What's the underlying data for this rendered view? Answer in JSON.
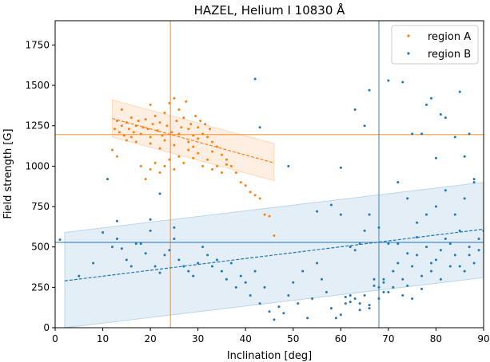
{
  "chart_data": {
    "type": "scatter",
    "title": "HAZEL, Helium I 10830 Å",
    "xlabel": "Inclination [deg]",
    "ylabel": "Field strength [G]",
    "xlim": [
      0,
      90
    ],
    "ylim": [
      0,
      1900
    ],
    "xticks": [
      0,
      10,
      20,
      30,
      40,
      50,
      60,
      70,
      80,
      90
    ],
    "yticks": [
      0,
      250,
      500,
      750,
      1000,
      1250,
      1500,
      1750
    ],
    "grid": false,
    "legend": {
      "placement": "top-right"
    },
    "colors": {
      "region_a": "#ff7f0e",
      "region_b": "#1f77b4"
    },
    "series": [
      {
        "name": "region A",
        "color": "#ff7f0e",
        "points": [
          [
            12.5,
            1230
          ],
          [
            13,
            1280
          ],
          [
            13.5,
            1210
          ],
          [
            14,
            1250
          ],
          [
            14.5,
            1190
          ],
          [
            15,
            1270
          ],
          [
            15.5,
            1230
          ],
          [
            16,
            1300
          ],
          [
            16.5,
            1210
          ],
          [
            17,
            1250
          ],
          [
            17.5,
            1280
          ],
          [
            18,
            1200
          ],
          [
            18.5,
            1240
          ],
          [
            19,
            1290
          ],
          [
            19.5,
            1230
          ],
          [
            20,
            1180
          ],
          [
            20.5,
            1260
          ],
          [
            21,
            1310
          ],
          [
            21.5,
            1220
          ],
          [
            22,
            1270
          ],
          [
            22.5,
            1190
          ],
          [
            23,
            1330
          ],
          [
            23.5,
            1250
          ],
          [
            24,
            1390
          ],
          [
            24.5,
            1210
          ],
          [
            25,
            1420
          ],
          [
            25.5,
            1280
          ],
          [
            26,
            1350
          ],
          [
            26.5,
            1240
          ],
          [
            27,
            1300
          ],
          [
            27.5,
            1400
          ],
          [
            28,
            1230
          ],
          [
            28.5,
            1260
          ],
          [
            29,
            1190
          ],
          [
            29.5,
            1310
          ],
          [
            30,
            1240
          ],
          [
            30.5,
            1280
          ],
          [
            31,
            1200
          ],
          [
            31.5,
            1260
          ],
          [
            32,
            1180
          ],
          [
            32.5,
            1230
          ],
          [
            33,
            1150
          ],
          [
            34,
            1120
          ],
          [
            35,
            1070
          ],
          [
            36,
            1040
          ],
          [
            37,
            1000
          ],
          [
            38,
            960
          ],
          [
            39,
            900
          ],
          [
            40,
            880
          ],
          [
            41,
            840
          ],
          [
            42,
            820
          ],
          [
            43,
            800
          ],
          [
            44,
            700
          ],
          [
            45,
            690
          ],
          [
            46,
            570
          ],
          [
            12,
            1100
          ],
          [
            13,
            1060
          ],
          [
            18,
            1000
          ],
          [
            19,
            920
          ],
          [
            20,
            980
          ],
          [
            21,
            1020
          ],
          [
            22,
            960
          ],
          [
            23,
            1000
          ],
          [
            24,
            1040
          ],
          [
            25,
            980
          ],
          [
            26,
            1060
          ],
          [
            27,
            1020
          ],
          [
            28,
            1100
          ],
          [
            29,
            1050
          ],
          [
            30,
            1080
          ],
          [
            31,
            1000
          ],
          [
            32,
            1040
          ],
          [
            33,
            980
          ],
          [
            34,
            1000
          ],
          [
            35,
            960
          ],
          [
            15,
            1160
          ],
          [
            16,
            1180
          ],
          [
            17,
            1150
          ],
          [
            20,
            1140
          ],
          [
            22,
            1110
          ],
          [
            25,
            1130
          ],
          [
            28,
            1150
          ],
          [
            30,
            1170
          ],
          [
            33,
            1090
          ],
          [
            36,
            1010
          ],
          [
            14,
            1350
          ],
          [
            20,
            1380
          ],
          [
            26,
            1200
          ],
          [
            23,
            1160
          ],
          [
            29,
            1120
          ]
        ]
      },
      {
        "name": "region B",
        "color": "#1f77b4",
        "points": [
          [
            1,
            545
          ],
          [
            5,
            320
          ],
          [
            8,
            400
          ],
          [
            10,
            590
          ],
          [
            12,
            500
          ],
          [
            13,
            550
          ],
          [
            14,
            490
          ],
          [
            15,
            420
          ],
          [
            16,
            380
          ],
          [
            18,
            520
          ],
          [
            19,
            460
          ],
          [
            20,
            600
          ],
          [
            21,
            380
          ],
          [
            22,
            340
          ],
          [
            23,
            450
          ],
          [
            24,
            480
          ],
          [
            25,
            550
          ],
          [
            26,
            420
          ],
          [
            27,
            380
          ],
          [
            28,
            350
          ],
          [
            29,
            320
          ],
          [
            30,
            400
          ],
          [
            31,
            500
          ],
          [
            32,
            450
          ],
          [
            33,
            380
          ],
          [
            34,
            420
          ],
          [
            35,
            350
          ],
          [
            36,
            300
          ],
          [
            37,
            400
          ],
          [
            38,
            250
          ],
          [
            39,
            320
          ],
          [
            40,
            280
          ],
          [
            41,
            200
          ],
          [
            42,
            350
          ],
          [
            43,
            150
          ],
          [
            44,
            250
          ],
          [
            45,
            100
          ],
          [
            46,
            50
          ],
          [
            47,
            130
          ],
          [
            48,
            90
          ],
          [
            49,
            200
          ],
          [
            50,
            280
          ],
          [
            51,
            150
          ],
          [
            52,
            350
          ],
          [
            53,
            60
          ],
          [
            54,
            180
          ],
          [
            55,
            400
          ],
          [
            56,
            300
          ],
          [
            57,
            220
          ],
          [
            58,
            120
          ],
          [
            59,
            60
          ],
          [
            60,
            80
          ],
          [
            61,
            150
          ],
          [
            62,
            200
          ],
          [
            63,
            180
          ],
          [
            64,
            150
          ],
          [
            65,
            200
          ],
          [
            66,
            120
          ],
          [
            67,
            300
          ],
          [
            68,
            250
          ],
          [
            69,
            280
          ],
          [
            70,
            220
          ],
          [
            71,
            350
          ],
          [
            72,
            400
          ],
          [
            73,
            300
          ],
          [
            74,
            260
          ],
          [
            75,
            380
          ],
          [
            76,
            450
          ],
          [
            77,
            320
          ],
          [
            78,
            500
          ],
          [
            79,
            350
          ],
          [
            80,
            420
          ],
          [
            81,
            300
          ],
          [
            82,
            550
          ],
          [
            83,
            380
          ],
          [
            84,
            450
          ],
          [
            85,
            600
          ],
          [
            86,
            350
          ],
          [
            87,
            500
          ],
          [
            88,
            400
          ],
          [
            89,
            550
          ],
          [
            66,
            700
          ],
          [
            68,
            620
          ],
          [
            70,
            520
          ],
          [
            72,
            900
          ],
          [
            74,
            800
          ],
          [
            76,
            650
          ],
          [
            78,
            700
          ],
          [
            80,
            750
          ],
          [
            82,
            850
          ],
          [
            84,
            700
          ],
          [
            86,
            800
          ],
          [
            88,
            900
          ],
          [
            90,
            600
          ],
          [
            62,
            500
          ],
          [
            63,
            480
          ],
          [
            64,
            520
          ],
          [
            65,
            600
          ],
          [
            70,
            1530
          ],
          [
            75,
            1200
          ],
          [
            78,
            1380
          ],
          [
            80,
            1050
          ],
          [
            82,
            1300
          ],
          [
            84,
            1180
          ],
          [
            86,
            1060
          ],
          [
            88,
            920
          ],
          [
            42,
            1540
          ],
          [
            43,
            1240
          ],
          [
            49,
            1000
          ],
          [
            60,
            990
          ],
          [
            63,
            1350
          ],
          [
            65,
            1250
          ],
          [
            66,
            1470
          ],
          [
            73,
            1520
          ],
          [
            77,
            1200
          ],
          [
            79,
            1420
          ],
          [
            81,
            1320
          ],
          [
            85,
            1460
          ],
          [
            87,
            1200
          ],
          [
            11,
            920
          ],
          [
            22,
            830
          ],
          [
            13,
            660
          ],
          [
            20,
            670
          ],
          [
            17,
            520
          ],
          [
            25,
            620
          ],
          [
            55,
            720
          ],
          [
            60,
            700
          ],
          [
            58,
            760
          ],
          [
            72,
            520
          ],
          [
            74,
            460
          ],
          [
            76,
            560
          ],
          [
            79,
            400
          ],
          [
            81,
            480
          ],
          [
            83,
            520
          ],
          [
            85,
            380
          ],
          [
            87,
            450
          ],
          [
            89,
            480
          ],
          [
            69,
            300
          ],
          [
            71,
            250
          ],
          [
            73,
            200
          ],
          [
            75,
            180
          ],
          [
            77,
            240
          ],
          [
            68,
            180
          ],
          [
            66,
            140
          ],
          [
            64,
            110
          ],
          [
            62,
            160
          ],
          [
            61,
            190
          ],
          [
            67,
            260
          ],
          [
            69,
            220
          ]
        ]
      }
    ],
    "fits": [
      {
        "series": "region A",
        "x_range": [
          12,
          46
        ],
        "line": [
          [
            12,
            1295
          ],
          [
            46,
            1020
          ]
        ],
        "band_upper": [
          [
            12,
            1410
          ],
          [
            46,
            1140
          ]
        ],
        "band_lower": [
          [
            12,
            1180
          ],
          [
            46,
            910
          ]
        ]
      },
      {
        "series": "region B",
        "x_range": [
          2,
          90
        ],
        "line": [
          [
            2,
            290
          ],
          [
            90,
            610
          ]
        ],
        "band_upper": [
          [
            2,
            590
          ],
          [
            90,
            900
          ]
        ],
        "band_lower": [
          [
            2,
            0
          ],
          [
            90,
            310
          ]
        ]
      }
    ],
    "reference_lines": [
      {
        "series": "region A",
        "x": 24.2,
        "y": 1195
      },
      {
        "series": "region B",
        "x": 68.0,
        "y": 528
      }
    ]
  }
}
